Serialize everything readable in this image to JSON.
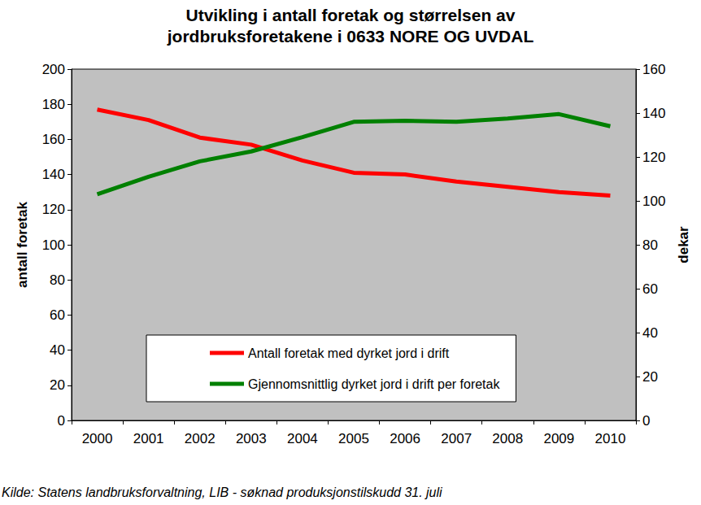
{
  "chart_data": {
    "type": "line",
    "title": "Utvikling i antall foretak og størrelsen av\njordbruksforetakene i 0633 NORE OG UVDAL",
    "categories": [
      "2000",
      "2001",
      "2002",
      "2003",
      "2004",
      "2005",
      "2006",
      "2007",
      "2008",
      "2009",
      "2010"
    ],
    "series": [
      {
        "name": "Antall foretak med dyrket jord i drift",
        "color": "#ff0000",
        "axis": "y",
        "values": [
          177,
          171,
          161,
          157,
          148,
          141,
          140,
          136,
          133,
          130,
          128
        ]
      },
      {
        "name": "Gjennomsnittlig dyrket jord i drift per foretak",
        "color": "#008000",
        "axis": "y2",
        "values": [
          103,
          111,
          118,
          122.5,
          129,
          136,
          136.5,
          136,
          137.5,
          139.5,
          134
        ]
      }
    ],
    "ylabel": "antall foretak",
    "y2label": "dekar",
    "ylim": [
      0,
      200
    ],
    "yticks": [
      0,
      20,
      40,
      60,
      80,
      100,
      120,
      140,
      160,
      180,
      200
    ],
    "y2lim": [
      0,
      160
    ],
    "y2ticks": [
      0,
      20,
      40,
      60,
      80,
      100,
      120,
      140,
      160
    ],
    "grid": false,
    "legend": "bottom",
    "annotations": [
      "Kilde: Statens landbruksforvaltning, LIB - søknad produksjonstilskudd 31. juli"
    ]
  }
}
